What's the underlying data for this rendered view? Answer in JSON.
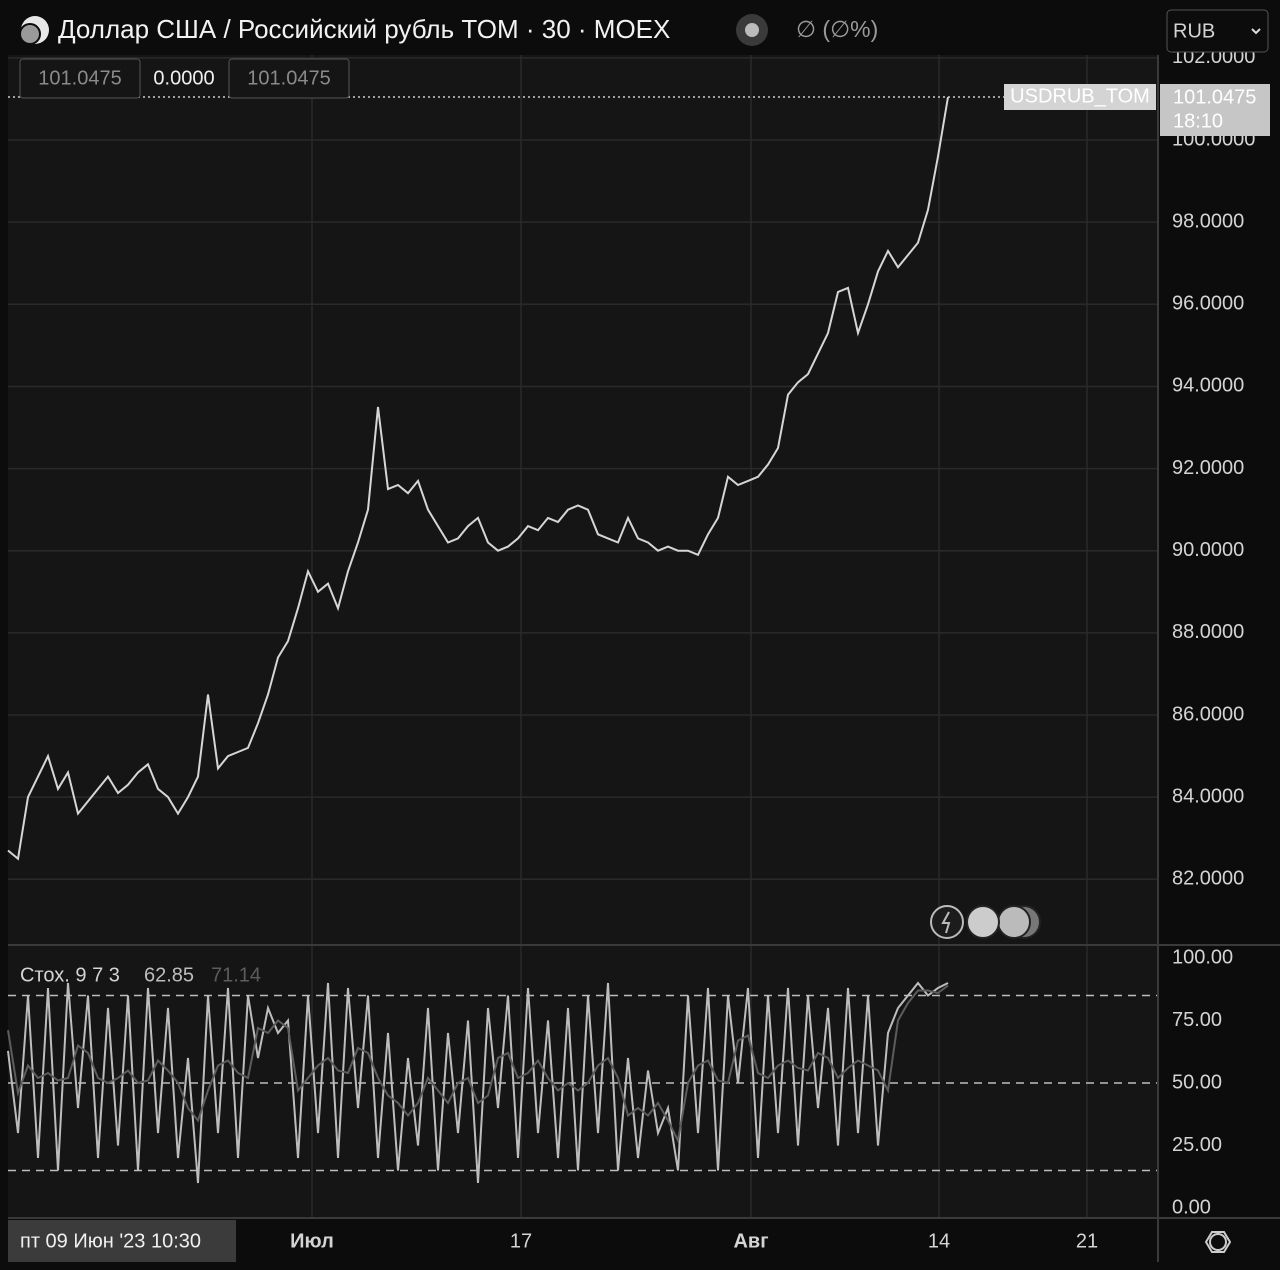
{
  "header": {
    "title": "Доллар США / Российский рубль TOM · 30 · MOEX",
    "change": "∅ (∅%)",
    "currency": "RUB",
    "ohlc": [
      "101.0475",
      "0.0000",
      "101.0475"
    ]
  },
  "crosshair_label": "пт 09 Июн '23 10:30",
  "chart_data": [
    {
      "type": "line",
      "grid": true,
      "series": [
        {
          "name": "USDRUB_TOM",
          "color": "#d6d6d6",
          "values": [
            82.7,
            82.5,
            84,
            84.5,
            85,
            84.2,
            84.6,
            83.6,
            83.9,
            84.2,
            84.5,
            84.1,
            84.3,
            84.6,
            84.8,
            84.2,
            84,
            83.6,
            84,
            84.5,
            86.5,
            84.7,
            85,
            85.1,
            85.2,
            85.8,
            86.5,
            87.4,
            87.8,
            88.6,
            89.5,
            89,
            89.2,
            88.6,
            89.5,
            90.2,
            91,
            93.5,
            91.5,
            91.6,
            91.4,
            91.7,
            91,
            90.6,
            90.2,
            90.3,
            90.6,
            90.8,
            90.2,
            90,
            90.1,
            90.3,
            90.6,
            90.5,
            90.8,
            90.7,
            91,
            91.1,
            91,
            90.4,
            90.3,
            90.2,
            90.8,
            90.3,
            90.2,
            90,
            90.1,
            90,
            90,
            89.9,
            90.4,
            90.8,
            91.8,
            91.6,
            91.7,
            91.8,
            92.1,
            92.5,
            93.8,
            94.1,
            94.3,
            94.8,
            95.3,
            96.3,
            96.4,
            95.3,
            96,
            96.8,
            97.3,
            96.9,
            97.2,
            97.5,
            98.3,
            99.6,
            101.0475
          ]
        }
      ],
      "last_label": {
        "price": "101.0475",
        "time": "18:10"
      },
      "xlim": [
        0,
        115
      ],
      "xticks": [
        {
          "value": 30.4,
          "label": "Июл"
        },
        {
          "value": 51.3,
          "label": "17"
        },
        {
          "value": 74.3,
          "label": "Авг"
        },
        {
          "value": 93.1,
          "label": "14"
        },
        {
          "value": 107.9,
          "label": "21"
        }
      ],
      "ylim": [
        80.4,
        102.07
      ],
      "yticks": [
        {
          "value": 82,
          "label": "82.0000"
        },
        {
          "value": 84,
          "label": "84.0000"
        },
        {
          "value": 86,
          "label": "86.0000"
        },
        {
          "value": 88,
          "label": "88.0000"
        },
        {
          "value": 90,
          "label": "90.0000"
        },
        {
          "value": 92,
          "label": "92.0000"
        },
        {
          "value": 94,
          "label": "94.0000"
        },
        {
          "value": 96,
          "label": "96.0000"
        },
        {
          "value": 98,
          "label": "98.0000"
        },
        {
          "value": 100,
          "label": "100.0000"
        },
        {
          "value": 102,
          "label": "102.0000"
        }
      ]
    },
    {
      "type": "line",
      "title": "Стох. 9 7 3",
      "series": [
        {
          "color": "#bdbdbd",
          "values": [
            62.85,
            30,
            85,
            20,
            88,
            15,
            90,
            40,
            85,
            20,
            80,
            25,
            85,
            15,
            88,
            30,
            80,
            20,
            60,
            10,
            85,
            30,
            88,
            20,
            85,
            60,
            80,
            70,
            75,
            20,
            85,
            30,
            90,
            20,
            88,
            40,
            85,
            20,
            70,
            15,
            60,
            25,
            80,
            15,
            70,
            30,
            75,
            10,
            80,
            40,
            85,
            20,
            88,
            30,
            75,
            20,
            80,
            15,
            85,
            30,
            90,
            15,
            60,
            20,
            55,
            30,
            40,
            15,
            85,
            30,
            88,
            15,
            85,
            50,
            88,
            20,
            85,
            30,
            88,
            25,
            85,
            40,
            80,
            25,
            88,
            30,
            85,
            25,
            70,
            80,
            85,
            90,
            85,
            88,
            90
          ]
        },
        {
          "color": "#5c5c5c",
          "values": [
            71.14,
            46,
            57,
            52,
            54,
            51,
            52,
            65,
            62,
            52,
            50,
            52,
            55,
            50,
            51,
            59,
            55,
            50,
            40,
            35,
            47,
            57,
            59,
            54,
            52,
            72,
            70,
            75,
            72,
            47,
            52,
            57,
            60,
            55,
            54,
            64,
            62,
            52,
            45,
            42,
            37,
            42,
            52,
            47,
            42,
            50,
            52,
            42,
            45,
            60,
            62,
            52,
            54,
            59,
            52,
            47,
            50,
            47,
            50,
            57,
            60,
            52,
            37,
            40,
            37,
            42,
            35,
            27,
            50,
            57,
            59,
            51,
            50,
            67,
            69,
            54,
            52,
            57,
            59,
            56,
            55,
            62,
            60,
            52,
            56,
            59,
            57,
            55,
            47,
            75,
            82,
            87,
            87,
            86,
            89
          ]
        }
      ],
      "bands": [
        85,
        50,
        15
      ],
      "xlim": [
        0,
        115
      ],
      "ylim": [
        -4,
        105.2
      ],
      "yticks": [
        {
          "value": 0,
          "label": "0.00"
        },
        {
          "value": 25,
          "label": "25.00"
        },
        {
          "value": 50,
          "label": "50.00"
        },
        {
          "value": 75,
          "label": "75.00"
        },
        {
          "value": 100,
          "label": "100.00"
        }
      ]
    }
  ]
}
